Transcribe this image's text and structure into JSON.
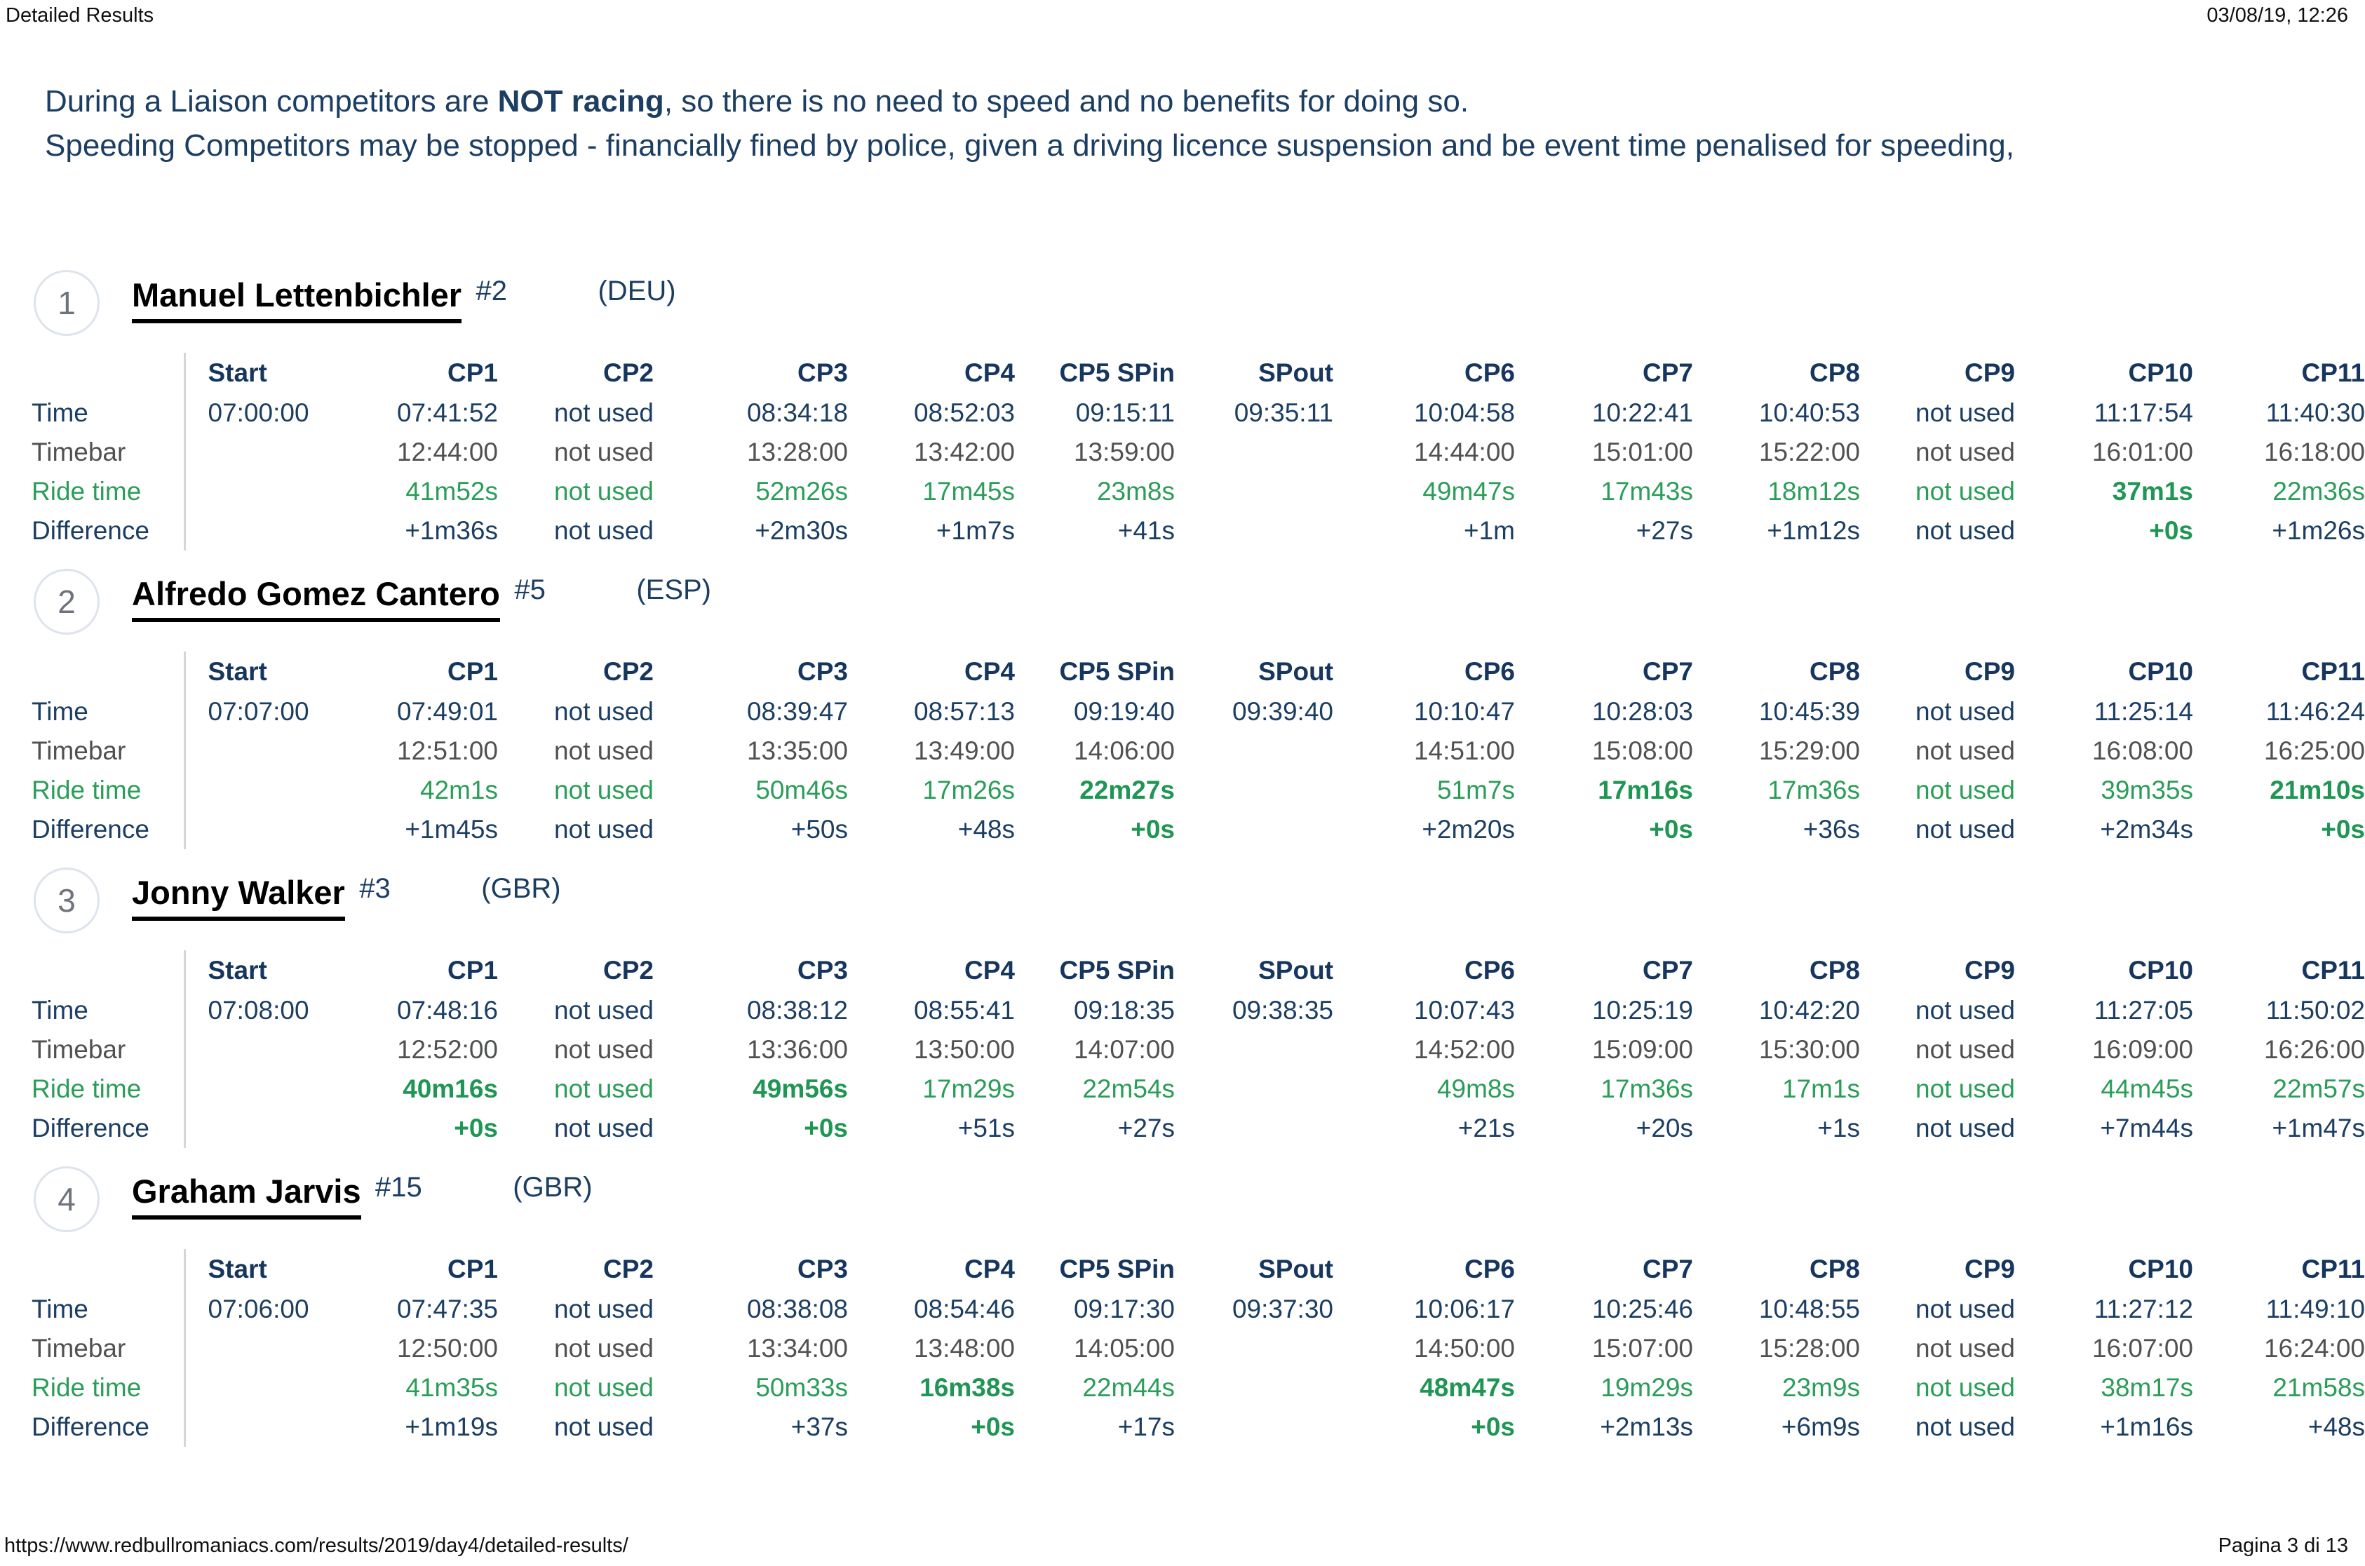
{
  "header": {
    "title": "Detailed Results",
    "datetime": "03/08/19, 12:26"
  },
  "intro": {
    "line1_pre": "During a Liaison competitors are ",
    "line1_bold": "NOT racing",
    "line1_post": ", so there is no need to speed and no benefits for doing so.",
    "line2": "Speeding Competitors may be stopped - financially fined by police, given a driving licence suspension and be event time penalised for speeding,"
  },
  "columns": [
    "Start",
    "CP1",
    "CP2",
    "CP3",
    "CP4",
    "CP5 SPin",
    "SPout",
    "CP6",
    "CP7",
    "CP8",
    "CP9",
    "CP10",
    "CP11"
  ],
  "row_labels": [
    "Time",
    "Timebar",
    "Ride time",
    "Difference"
  ],
  "colors": {
    "navy": "#1c3e63",
    "gray": "#505153",
    "green": "#2a9d58",
    "best_green": "#1f9653"
  },
  "competitors": [
    {
      "rank": "1",
      "name": "Manuel Lettenbichler",
      "number": "#2",
      "country": "(DEU)",
      "rows": {
        "time": [
          "07:00:00",
          "07:41:52",
          "not used",
          "08:34:18",
          "08:52:03",
          "09:15:11",
          "09:35:11",
          "10:04:58",
          "10:22:41",
          "10:40:53",
          "not used",
          "11:17:54",
          "11:40:30"
        ],
        "timebar": [
          "",
          "12:44:00",
          "not used",
          "13:28:00",
          "13:42:00",
          "13:59:00",
          "",
          "14:44:00",
          "15:01:00",
          "15:22:00",
          "not used",
          "16:01:00",
          "16:18:00"
        ],
        "ride_time": [
          "",
          "41m52s",
          "not used",
          "52m26s",
          "17m45s",
          "23m8s",
          "",
          "49m47s",
          "17m43s",
          "18m12s",
          "not used",
          "37m1s",
          "22m36s"
        ],
        "difference": [
          "",
          "+1m36s",
          "not used",
          "+2m30s",
          "+1m7s",
          "+41s",
          "",
          "+1m",
          "+27s",
          "+1m12s",
          "not used",
          "+0s",
          "+1m26s"
        ],
        "bold": {
          "ride_time": [
            11
          ],
          "difference": [
            11
          ]
        }
      }
    },
    {
      "rank": "2",
      "name": "Alfredo Gomez Cantero",
      "number": "#5",
      "country": "(ESP)",
      "rows": {
        "time": [
          "07:07:00",
          "07:49:01",
          "not used",
          "08:39:47",
          "08:57:13",
          "09:19:40",
          "09:39:40",
          "10:10:47",
          "10:28:03",
          "10:45:39",
          "not used",
          "11:25:14",
          "11:46:24"
        ],
        "timebar": [
          "",
          "12:51:00",
          "not used",
          "13:35:00",
          "13:49:00",
          "14:06:00",
          "",
          "14:51:00",
          "15:08:00",
          "15:29:00",
          "not used",
          "16:08:00",
          "16:25:00"
        ],
        "ride_time": [
          "",
          "42m1s",
          "not used",
          "50m46s",
          "17m26s",
          "22m27s",
          "",
          "51m7s",
          "17m16s",
          "17m36s",
          "not used",
          "39m35s",
          "21m10s"
        ],
        "difference": [
          "",
          "+1m45s",
          "not used",
          "+50s",
          "+48s",
          "+0s",
          "",
          "+2m20s",
          "+0s",
          "+36s",
          "not used",
          "+2m34s",
          "+0s"
        ],
        "bold": {
          "ride_time": [
            5,
            8,
            12
          ],
          "difference": [
            5,
            8,
            12
          ]
        }
      }
    },
    {
      "rank": "3",
      "name": "Jonny Walker",
      "number": "#3",
      "country": "(GBR)",
      "rows": {
        "time": [
          "07:08:00",
          "07:48:16",
          "not used",
          "08:38:12",
          "08:55:41",
          "09:18:35",
          "09:38:35",
          "10:07:43",
          "10:25:19",
          "10:42:20",
          "not used",
          "11:27:05",
          "11:50:02"
        ],
        "timebar": [
          "",
          "12:52:00",
          "not used",
          "13:36:00",
          "13:50:00",
          "14:07:00",
          "",
          "14:52:00",
          "15:09:00",
          "15:30:00",
          "not used",
          "16:09:00",
          "16:26:00"
        ],
        "ride_time": [
          "",
          "40m16s",
          "not used",
          "49m56s",
          "17m29s",
          "22m54s",
          "",
          "49m8s",
          "17m36s",
          "17m1s",
          "not used",
          "44m45s",
          "22m57s"
        ],
        "difference": [
          "",
          "+0s",
          "not used",
          "+0s",
          "+51s",
          "+27s",
          "",
          "+21s",
          "+20s",
          "+1s",
          "not used",
          "+7m44s",
          "+1m47s"
        ],
        "bold": {
          "ride_time": [
            1,
            3
          ],
          "difference": [
            1,
            3
          ]
        }
      }
    },
    {
      "rank": "4",
      "name": "Graham Jarvis",
      "number": "#15",
      "country": "(GBR)",
      "rows": {
        "time": [
          "07:06:00",
          "07:47:35",
          "not used",
          "08:38:08",
          "08:54:46",
          "09:17:30",
          "09:37:30",
          "10:06:17",
          "10:25:46",
          "10:48:55",
          "not used",
          "11:27:12",
          "11:49:10"
        ],
        "timebar": [
          "",
          "12:50:00",
          "not used",
          "13:34:00",
          "13:48:00",
          "14:05:00",
          "",
          "14:50:00",
          "15:07:00",
          "15:28:00",
          "not used",
          "16:07:00",
          "16:24:00"
        ],
        "ride_time": [
          "",
          "41m35s",
          "not used",
          "50m33s",
          "16m38s",
          "22m44s",
          "",
          "48m47s",
          "19m29s",
          "23m9s",
          "not used",
          "38m17s",
          "21m58s"
        ],
        "difference": [
          "",
          "+1m19s",
          "not used",
          "+37s",
          "+0s",
          "+17s",
          "",
          "+0s",
          "+2m13s",
          "+6m9s",
          "not used",
          "+1m16s",
          "+48s"
        ],
        "bold": {
          "ride_time": [
            4,
            7
          ],
          "difference": [
            4,
            7
          ]
        }
      }
    }
  ],
  "footer": {
    "url": "https://www.redbullromaniacs.com/results/2019/day4/detailed-results/",
    "page": "Pagina 3 di 13"
  }
}
